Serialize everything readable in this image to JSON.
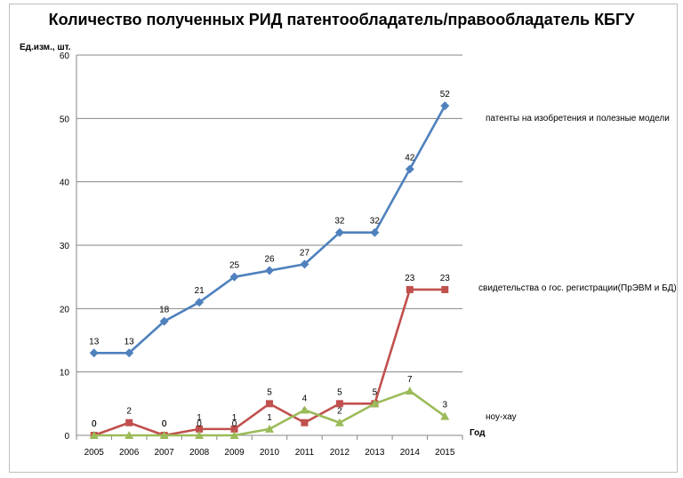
{
  "chart_data": {
    "type": "line",
    "title": "Количество полученных РИД патентообладатель/правообладатель КБГУ",
    "ylabel": "Ед.изм., шт.",
    "xlabel": "Год",
    "ylim": [
      0,
      60
    ],
    "yticks": [
      0,
      10,
      20,
      30,
      40,
      50,
      60
    ],
    "categories": [
      "2005",
      "2006",
      "2007",
      "2008",
      "2009",
      "2010",
      "2011",
      "2012",
      "2013",
      "2014",
      "2015"
    ],
    "grid": true,
    "series": [
      {
        "name": "патенты на изобретения и полезные модели",
        "color": "#4f81bd",
        "marker": "diamond",
        "values": [
          13,
          13,
          18,
          21,
          25,
          26,
          27,
          32,
          32,
          42,
          52
        ],
        "data_labels": [
          "13",
          "13",
          "18",
          "21",
          "25",
          "26",
          "27",
          "32",
          "32",
          "42",
          "52"
        ]
      },
      {
        "name": "свидетельства о гос. регистрации(ПрЭВМ и БД)",
        "color": "#c0504d",
        "marker": "square",
        "values": [
          0,
          2,
          0,
          1,
          1,
          5,
          2,
          5,
          5,
          23,
          23
        ],
        "data_labels": [
          "0",
          "2",
          "0",
          "1",
          "1",
          "5",
          "2",
          "5",
          "5",
          "23",
          "23"
        ]
      },
      {
        "name": "ноу-хау",
        "color": "#9bbb59",
        "marker": "triangle",
        "values": [
          0,
          0,
          0,
          0,
          0,
          1,
          4,
          2,
          5,
          7,
          3
        ],
        "data_labels": [
          "0",
          "",
          "0",
          "0",
          "0",
          "1",
          "4",
          "2",
          "",
          "7",
          "3"
        ]
      }
    ]
  }
}
